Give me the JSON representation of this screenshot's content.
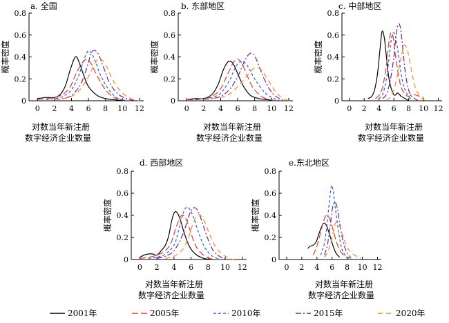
{
  "figure": {
    "series_styles": [
      {
        "name": "2001年",
        "color": "#000000",
        "dash": "solid"
      },
      {
        "name": "2005年",
        "color": "#e03c2c",
        "dash": "long-dash"
      },
      {
        "name": "2010年",
        "color": "#2b63c6",
        "dash": "short-dash"
      },
      {
        "name": "2015年",
        "color": "#7a1d8c",
        "dash": "dash-dot"
      },
      {
        "name": "2020年",
        "color": "#f08a2e",
        "dash": "dash"
      }
    ]
  },
  "chart_data": [
    {
      "type": "line",
      "title": "a. 全国",
      "xlabel": [
        "对数当年新注册",
        "数字经济企业数量"
      ],
      "ylabel": "概率密度",
      "xlim": [
        -1,
        12.5
      ],
      "ylim": [
        0,
        0.8
      ],
      "xticks": [
        0,
        2,
        4,
        6,
        8,
        10,
        12
      ],
      "yticks": [
        0,
        0.2,
        0.4,
        0.6,
        0.8
      ],
      "series": [
        {
          "name": "2001年",
          "x": [
            0,
            1,
            2,
            2.7,
            3.3,
            3.8,
            4.3,
            4.6,
            5.0,
            5.5,
            6,
            7,
            8,
            9,
            10
          ],
          "y": [
            0.02,
            0.03,
            0.03,
            0.06,
            0.14,
            0.27,
            0.38,
            0.4,
            0.33,
            0.22,
            0.13,
            0.05,
            0.02,
            0.01,
            0
          ]
        },
        {
          "name": "2005年",
          "x": [
            0,
            1,
            2,
            3,
            3.8,
            4.5,
            5.2,
            5.8,
            6.3,
            7,
            8,
            9,
            10,
            10.5
          ],
          "y": [
            0.01,
            0.02,
            0.03,
            0.06,
            0.12,
            0.24,
            0.34,
            0.38,
            0.34,
            0.23,
            0.1,
            0.03,
            0.01,
            0
          ]
        },
        {
          "name": "2010年",
          "x": [
            1,
            2,
            3,
            4,
            4.8,
            5.4,
            5.9,
            6.3,
            6.8,
            7.5,
            8.5,
            9.5,
            10.5
          ],
          "y": [
            0.01,
            0.02,
            0.04,
            0.1,
            0.22,
            0.36,
            0.45,
            0.44,
            0.36,
            0.22,
            0.09,
            0.02,
            0
          ]
        },
        {
          "name": "2015年",
          "x": [
            2,
            3,
            4,
            5,
            5.8,
            6.3,
            6.7,
            7.2,
            7.8,
            8.5,
            9.5,
            10.5,
            11.5
          ],
          "y": [
            0.01,
            0.02,
            0.05,
            0.14,
            0.3,
            0.43,
            0.46,
            0.42,
            0.3,
            0.16,
            0.06,
            0.02,
            0
          ]
        },
        {
          "name": "2020年",
          "x": [
            2,
            3,
            4,
            5,
            6,
            6.6,
            7.1,
            7.6,
            8.2,
            9,
            10,
            11,
            12
          ],
          "y": [
            0.01,
            0.02,
            0.04,
            0.1,
            0.22,
            0.32,
            0.38,
            0.37,
            0.3,
            0.17,
            0.07,
            0.02,
            0
          ]
        }
      ]
    },
    {
      "type": "line",
      "title": "b. 东部地区",
      "xlabel": [
        "对数当年新注册",
        "数字经济企业数量"
      ],
      "ylabel": "概率密度",
      "xlim": [
        -1,
        12.5
      ],
      "ylim": [
        0,
        0.8
      ],
      "xticks": [
        0,
        2,
        4,
        6,
        8,
        10,
        12
      ],
      "yticks": [
        0,
        0.2,
        0.4,
        0.6,
        0.8
      ],
      "series": [
        {
          "name": "2001年",
          "x": [
            0,
            1,
            2,
            3,
            3.7,
            4.3,
            4.8,
            5.2,
            5.6,
            6.1,
            6.7,
            7.5,
            8.5,
            9.5,
            10.5
          ],
          "y": [
            0.01,
            0.02,
            0.02,
            0.06,
            0.15,
            0.28,
            0.35,
            0.36,
            0.32,
            0.23,
            0.13,
            0.05,
            0.02,
            0.01,
            0
          ]
        },
        {
          "name": "2005年",
          "x": [
            0,
            1,
            2,
            3,
            4,
            4.8,
            5.5,
            6,
            6.5,
            7,
            7.8,
            8.8,
            9.8,
            10.5
          ],
          "y": [
            0.01,
            0.01,
            0.02,
            0.04,
            0.11,
            0.24,
            0.35,
            0.38,
            0.34,
            0.25,
            0.12,
            0.04,
            0.01,
            0
          ]
        },
        {
          "name": "2010年",
          "x": [
            1,
            2,
            3,
            4,
            5,
            5.7,
            6.3,
            6.8,
            7.3,
            8,
            9,
            10,
            11
          ],
          "y": [
            0.01,
            0.02,
            0.03,
            0.07,
            0.18,
            0.3,
            0.36,
            0.35,
            0.3,
            0.2,
            0.09,
            0.03,
            0
          ]
        },
        {
          "name": "2015年",
          "x": [
            2,
            3,
            4,
            5,
            6,
            6.8,
            7.4,
            7.9,
            8.4,
            9,
            9.8,
            10.5,
            11.5
          ],
          "y": [
            0.01,
            0.02,
            0.04,
            0.1,
            0.22,
            0.36,
            0.43,
            0.42,
            0.34,
            0.22,
            0.1,
            0.04,
            0
          ]
        },
        {
          "name": "2020年",
          "x": [
            2,
            3,
            4,
            5,
            6,
            7,
            7.8,
            8.3,
            8.8,
            9.5,
            10.3,
            11,
            12
          ],
          "y": [
            0.01,
            0.02,
            0.03,
            0.06,
            0.13,
            0.22,
            0.29,
            0.3,
            0.28,
            0.2,
            0.1,
            0.04,
            0
          ]
        }
      ]
    },
    {
      "type": "line",
      "title": "c. 中部地区",
      "xlabel": [
        "对数当年新注册",
        "数字经济企业数量"
      ],
      "ylabel": "概率密度",
      "xlim": [
        -1,
        12.5
      ],
      "ylim": [
        0,
        0.8
      ],
      "xticks": [
        0,
        2,
        4,
        6,
        8,
        10,
        12
      ],
      "yticks": [
        0,
        0.2,
        0.4,
        0.6,
        0.8
      ],
      "series": [
        {
          "name": "2001年",
          "x": [
            2.5,
            3,
            3.4,
            3.8,
            4.1,
            4.4,
            4.7,
            5,
            5.3,
            5.7,
            6.1,
            6.5,
            7,
            7.5,
            8
          ],
          "y": [
            0.02,
            0.04,
            0.1,
            0.25,
            0.45,
            0.63,
            0.58,
            0.4,
            0.22,
            0.1,
            0.05,
            0.07,
            0.04,
            0.02,
            0
          ]
        },
        {
          "name": "2005年",
          "x": [
            3.5,
            4,
            4.5,
            5,
            5.3,
            5.6,
            5.9,
            6.2,
            6.6,
            7,
            7.5,
            8,
            8.5,
            9,
            9.5,
            10
          ],
          "y": [
            0.02,
            0.05,
            0.13,
            0.33,
            0.52,
            0.62,
            0.58,
            0.42,
            0.24,
            0.12,
            0.06,
            0.04,
            0.06,
            0.05,
            0.04,
            0.03
          ]
        },
        {
          "name": "2010年",
          "x": [
            4,
            4.5,
            5,
            5.4,
            5.7,
            6,
            6.3,
            6.7,
            7.1,
            7.5,
            8,
            8.5
          ],
          "y": [
            0.02,
            0.06,
            0.2,
            0.42,
            0.58,
            0.62,
            0.56,
            0.38,
            0.2,
            0.1,
            0.04,
            0
          ]
        },
        {
          "name": "2015年",
          "x": [
            4.5,
            5,
            5.5,
            6,
            6.3,
            6.6,
            6.9,
            7.2,
            7.5,
            7.9,
            8.3,
            8.8,
            9.3
          ],
          "y": [
            0.02,
            0.06,
            0.18,
            0.4,
            0.6,
            0.7,
            0.66,
            0.48,
            0.28,
            0.12,
            0.05,
            0.02,
            0
          ]
        },
        {
          "name": "2020年",
          "x": [
            5,
            5.5,
            6,
            6.5,
            7,
            7.3,
            7.6,
            7.9,
            8.3,
            8.8,
            9.3,
            9.8,
            10.3
          ],
          "y": [
            0.01,
            0.03,
            0.1,
            0.24,
            0.4,
            0.5,
            0.5,
            0.44,
            0.3,
            0.14,
            0.06,
            0.02,
            0
          ]
        }
      ]
    },
    {
      "type": "line",
      "title": "d. 西部地区",
      "xlabel": [
        "对数当年新注册",
        "数字经济企业数量"
      ],
      "ylabel": "概率密度",
      "xlim": [
        -1,
        12.5
      ],
      "ylim": [
        0,
        0.8
      ],
      "xticks": [
        0,
        2,
        4,
        6,
        8,
        10,
        12
      ],
      "yticks": [
        0,
        0.2,
        0.4,
        0.6,
        0.8
      ],
      "series": [
        {
          "name": "2001年",
          "x": [
            0,
            0.5,
            1,
            1.5,
            2,
            2.5,
            3,
            3.4,
            3.7,
            4,
            4.3,
            4.7,
            5.2,
            5.8,
            6.5,
            7.5,
            8.5
          ],
          "y": [
            0.02,
            0.04,
            0.05,
            0.05,
            0.04,
            0.08,
            0.13,
            0.22,
            0.34,
            0.42,
            0.43,
            0.37,
            0.24,
            0.12,
            0.05,
            0.01,
            0
          ]
        },
        {
          "name": "2005年",
          "x": [
            0,
            1,
            2,
            3,
            3.7,
            4.2,
            4.7,
            5,
            5.4,
            5.9,
            6.5,
            7.3,
            8.2,
            9
          ],
          "y": [
            0.01,
            0.02,
            0.04,
            0.08,
            0.16,
            0.28,
            0.38,
            0.4,
            0.37,
            0.26,
            0.13,
            0.05,
            0.01,
            0
          ]
        },
        {
          "name": "2010年",
          "x": [
            1,
            2,
            3,
            4,
            4.5,
            5,
            5.4,
            5.8,
            6.3,
            6.9,
            7.6,
            8.5,
            9.5
          ],
          "y": [
            0.01,
            0.02,
            0.05,
            0.13,
            0.25,
            0.4,
            0.47,
            0.46,
            0.38,
            0.24,
            0.11,
            0.03,
            0
          ]
        },
        {
          "name": "2015年",
          "x": [
            2,
            3,
            4,
            5,
            5.6,
            6,
            6.4,
            6.8,
            7.3,
            7.9,
            8.6,
            9.5,
            10.3
          ],
          "y": [
            0.01,
            0.03,
            0.08,
            0.22,
            0.36,
            0.44,
            0.47,
            0.44,
            0.34,
            0.2,
            0.08,
            0.02,
            0
          ]
        },
        {
          "name": "2020年",
          "x": [
            3,
            4,
            5,
            5.7,
            6.2,
            6.7,
            7.1,
            7.6,
            8.2,
            9,
            9.8,
            10.5,
            11
          ],
          "y": [
            0.01,
            0.03,
            0.09,
            0.2,
            0.32,
            0.4,
            0.4,
            0.34,
            0.22,
            0.1,
            0.04,
            0.01,
            0
          ]
        }
      ]
    },
    {
      "type": "line",
      "title": "e.东北地区",
      "xlabel": [
        "对数当年新注册",
        "数字经济企业数量"
      ],
      "ylabel": "概率密度",
      "xlim": [
        -1,
        12.5
      ],
      "ylim": [
        0,
        0.8
      ],
      "xticks": [
        0,
        2,
        4,
        6,
        8,
        10,
        12
      ],
      "yticks": [
        0,
        0.2,
        0.4,
        0.6,
        0.8
      ],
      "series": [
        {
          "name": "2001年",
          "x": [
            2.8,
            3.1,
            3.5,
            3.9,
            4.3,
            4.7,
            5,
            5.3,
            5.7,
            6.1,
            6.5,
            7
          ],
          "y": [
            0.1,
            0.12,
            0.13,
            0.16,
            0.24,
            0.31,
            0.33,
            0.3,
            0.22,
            0.13,
            0.06,
            0.02
          ]
        },
        {
          "name": "2005年",
          "x": [
            3.5,
            4,
            4.5,
            4.8,
            5.2,
            5.6,
            6,
            6.4,
            6.9,
            7.5,
            8.2
          ],
          "y": [
            0.04,
            0.12,
            0.25,
            0.33,
            0.4,
            0.38,
            0.3,
            0.2,
            0.1,
            0.04,
            0.01
          ]
        },
        {
          "name": "2010年",
          "x": [
            4.5,
            5,
            5.3,
            5.6,
            5.9,
            6.1,
            6.4,
            6.8,
            7.2,
            7.7,
            8.3
          ],
          "y": [
            0.04,
            0.15,
            0.3,
            0.5,
            0.66,
            0.64,
            0.48,
            0.28,
            0.12,
            0.04,
            0.01
          ]
        },
        {
          "name": "2015年",
          "x": [
            5,
            5.4,
            5.8,
            6.1,
            6.4,
            6.7,
            7,
            7.4,
            7.9,
            8.5
          ],
          "y": [
            0.04,
            0.14,
            0.33,
            0.48,
            0.52,
            0.46,
            0.33,
            0.18,
            0.07,
            0.01
          ]
        },
        {
          "name": "2020年",
          "x": [
            5,
            5.5,
            6,
            6.3,
            6.6,
            6.9,
            7.3,
            7.8,
            8.4,
            9.2,
            9.8
          ],
          "y": [
            0.02,
            0.08,
            0.2,
            0.3,
            0.34,
            0.32,
            0.24,
            0.14,
            0.07,
            0.03,
            0.01
          ]
        }
      ]
    }
  ]
}
